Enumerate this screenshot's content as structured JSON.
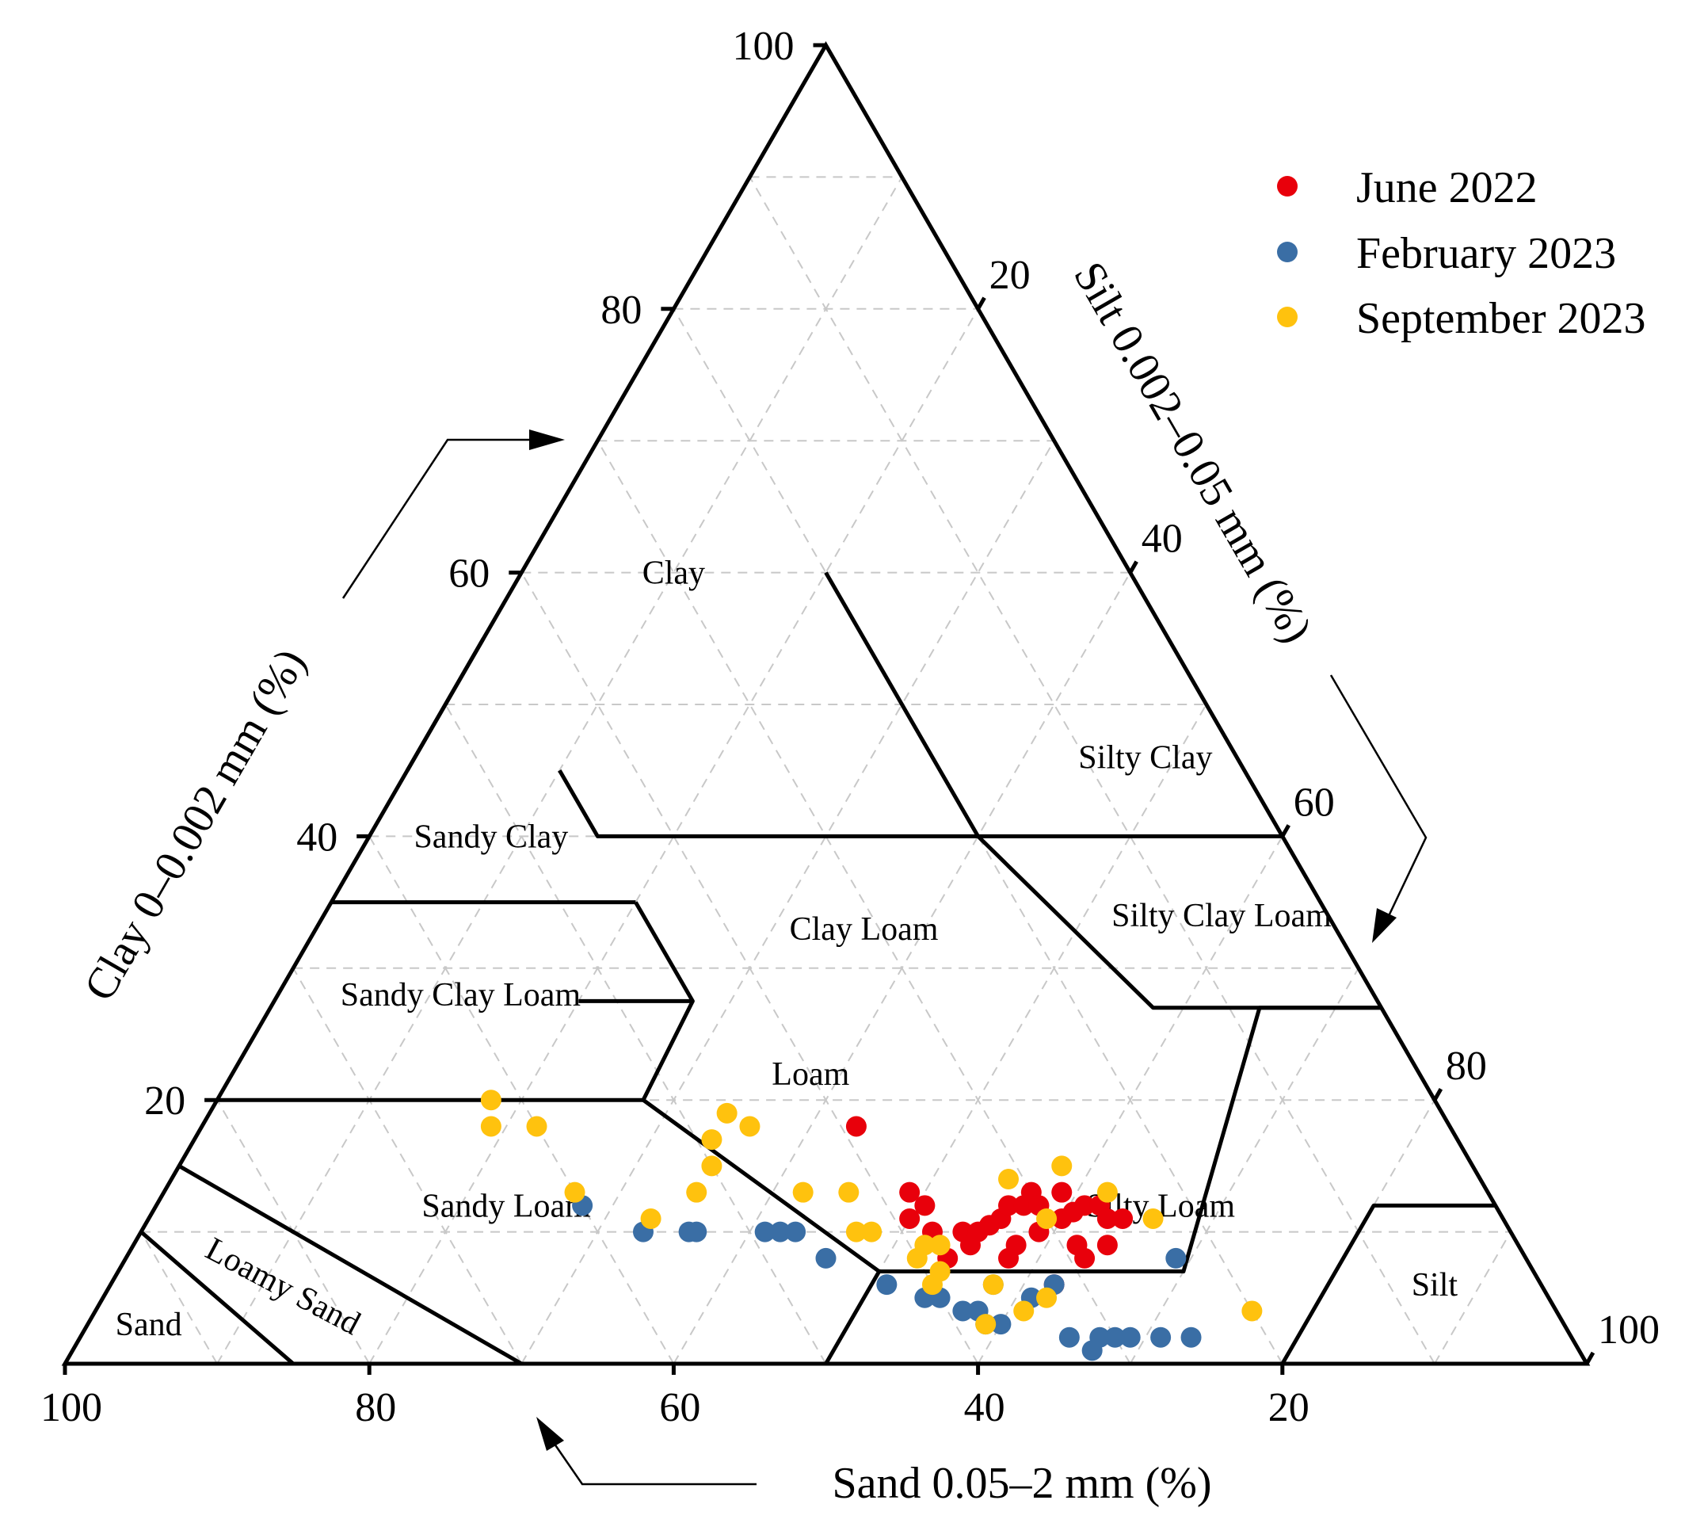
{
  "chart_data": {
    "type": "scatter",
    "subtype": "ternary",
    "axes": {
      "clay": {
        "label": "Clay 0–0.002 mm (%)",
        "ticks": [
          "20",
          "40",
          "60",
          "80",
          "100"
        ]
      },
      "silt": {
        "label": "Silt 0.002–0.05 mm (%)",
        "ticks": [
          "20",
          "40",
          "60",
          "80",
          "100"
        ]
      },
      "sand": {
        "label": "Sand 0.05–2 mm (%)",
        "ticks": [
          "100",
          "80",
          "60",
          "40",
          "20"
        ]
      }
    },
    "grid": true,
    "legend_position": "top-right",
    "regions": [
      {
        "name": "Clay",
        "sand": 30,
        "clay": 60
      },
      {
        "name": "Silty Clay",
        "sand": 6,
        "clay": 46
      },
      {
        "name": "Sandy Clay",
        "sand": 52,
        "clay": 40
      },
      {
        "name": "Clay Loam",
        "sand": 31,
        "clay": 33
      },
      {
        "name": "Silty Clay Loam",
        "sand": 7,
        "clay": 34
      },
      {
        "name": "Sandy Clay Loam",
        "sand": 60,
        "clay": 28
      },
      {
        "name": "Loam",
        "sand": 40,
        "clay": 22
      },
      {
        "name": "Sandy Loam",
        "sand": 65,
        "clay": 12
      },
      {
        "name": "Silty Loam",
        "sand": 22,
        "clay": 12
      },
      {
        "name": "Loamy Sand",
        "sand": 83,
        "clay": 6
      },
      {
        "name": "Sand",
        "sand": 93,
        "clay": 3
      },
      {
        "name": "Silt",
        "sand": 7,
        "clay": 6
      }
    ],
    "series": [
      {
        "name": "June 2022",
        "color": "#e8000b",
        "points": [
          [
            39,
            18
          ],
          [
            38,
            13
          ],
          [
            37.5,
            12
          ],
          [
            38,
            10
          ],
          [
            39,
            11
          ],
          [
            36,
            10
          ],
          [
            35,
            10
          ],
          [
            34,
            10.5
          ],
          [
            33,
            11
          ],
          [
            32,
            12
          ],
          [
            31,
            12
          ],
          [
            30,
            13
          ],
          [
            30,
            12
          ],
          [
            29,
            11
          ],
          [
            28,
            11.5
          ],
          [
            27,
            12
          ],
          [
            26,
            12
          ],
          [
            29,
            9
          ],
          [
            31,
            10
          ],
          [
            33,
            9
          ],
          [
            34,
            8
          ],
          [
            36,
            9
          ],
          [
            38,
            8
          ],
          [
            29,
            8
          ],
          [
            27,
            9
          ],
          [
            32,
            6
          ],
          [
            28,
            13
          ],
          [
            26,
            11
          ],
          [
            25,
            11
          ]
        ]
      },
      {
        "name": "February 2023",
        "color": "#3a6ea5",
        "points": [
          [
            60,
            12
          ],
          [
            57,
            10
          ],
          [
            54,
            10
          ],
          [
            53.5,
            10
          ],
          [
            49,
            10
          ],
          [
            48,
            10
          ],
          [
            47,
            10
          ],
          [
            46,
            8
          ],
          [
            43,
            6
          ],
          [
            41,
            5
          ],
          [
            39,
            4
          ],
          [
            38,
            4
          ],
          [
            37,
            3
          ],
          [
            38,
            3
          ],
          [
            40,
            5
          ],
          [
            36,
            6
          ],
          [
            34,
            5
          ],
          [
            32,
            6
          ],
          [
            33,
            2
          ],
          [
            31,
            2
          ],
          [
            32,
            1
          ],
          [
            30,
            2
          ],
          [
            29,
            2
          ],
          [
            27,
            2
          ],
          [
            25,
            2
          ],
          [
            23,
            8
          ]
        ]
      },
      {
        "name": "September 2023",
        "color": "#ffc20e",
        "points": [
          [
            62,
            20
          ],
          [
            63,
            18
          ],
          [
            60,
            18
          ],
          [
            60,
            13
          ],
          [
            56,
            11
          ],
          [
            52,
            13
          ],
          [
            50,
            15
          ],
          [
            49,
            17
          ],
          [
            47,
            19
          ],
          [
            46,
            18
          ],
          [
            45,
            13
          ],
          [
            43,
            10
          ],
          [
            42,
            13
          ],
          [
            42,
            10
          ],
          [
            40,
            8
          ],
          [
            40,
            6
          ],
          [
            39,
            9
          ],
          [
            39,
            7
          ],
          [
            38,
            9
          ],
          [
            38,
            3
          ],
          [
            36,
            6
          ],
          [
            35,
            4
          ],
          [
            33,
            5
          ],
          [
            31,
            14
          ],
          [
            30,
            11
          ],
          [
            27,
            15
          ],
          [
            25,
            13
          ],
          [
            23,
            11
          ],
          [
            20,
            4
          ]
        ]
      }
    ]
  }
}
